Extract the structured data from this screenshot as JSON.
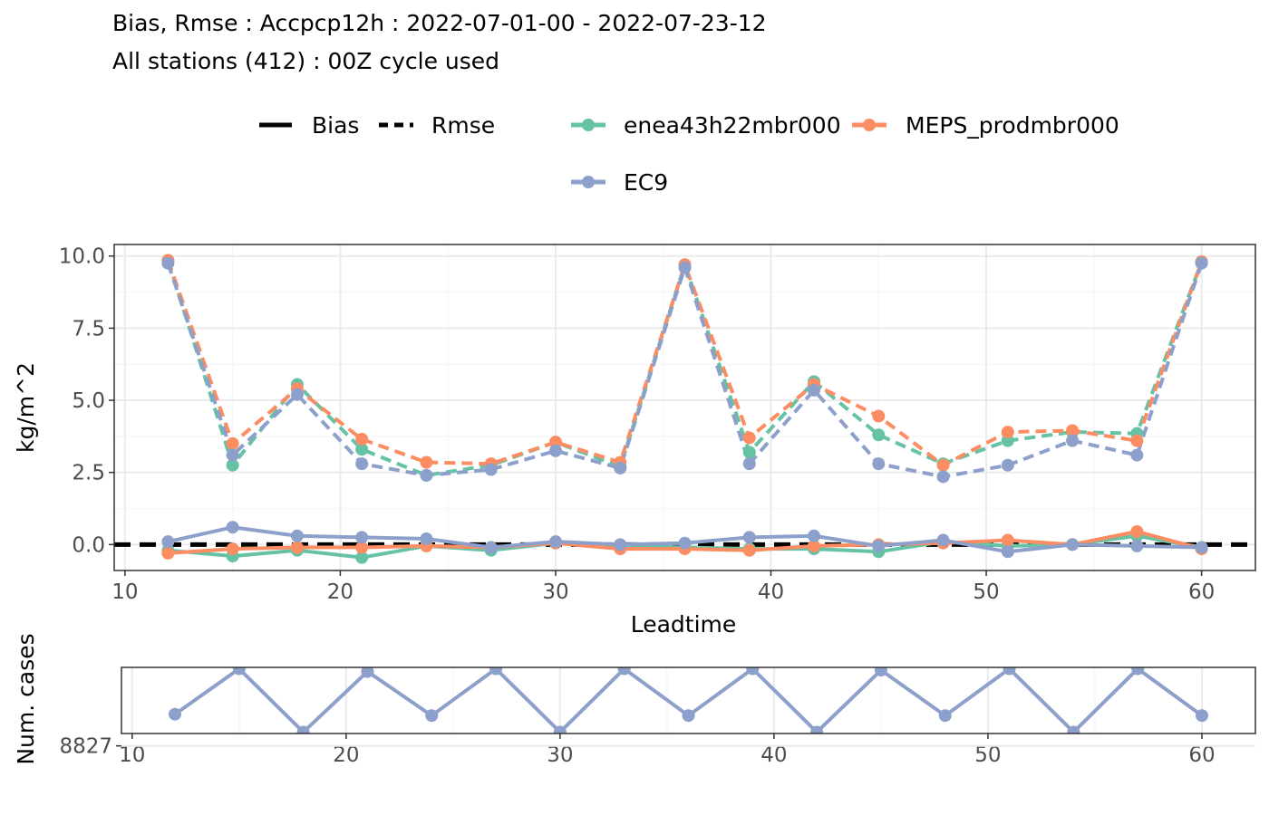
{
  "colors": {
    "enea43h22mbr000": "#66c2a5",
    "MEPS_prodmbr000": "#fc8d62",
    "EC9": "#8da0cb",
    "zero_line": "#000000",
    "grid_major": "#ebebeb",
    "grid_minor": "#f5f5f5",
    "panel_border": "#333333"
  },
  "chart_data": [
    {
      "type": "line",
      "title": "Bias, Rmse : Accpcp12h : 2022-07-01-00 - 2022-07-23-12",
      "subtitle": "All stations (412) : 00Z cycle used",
      "xlabel": "Leadtime",
      "ylabel": "kg/m^2",
      "xlim": [
        9.5,
        62.5
      ],
      "ylim": [
        -0.9,
        10.4
      ],
      "xticks": [
        10,
        20,
        30,
        40,
        50,
        60
      ],
      "yticks": [
        0.0,
        2.5,
        5.0,
        7.5,
        10.0
      ],
      "ytick_labels": [
        "0.0",
        "2.5",
        "5.0",
        "7.5",
        "10.0"
      ],
      "grid": true,
      "legend_position": "top",
      "legend": {
        "linetype": [
          {
            "label": "Bias",
            "style": "solid"
          },
          {
            "label": "Rmse",
            "style": "dashed"
          }
        ],
        "models": [
          "enea43h22mbr000",
          "MEPS_prodmbr000",
          "EC9"
        ]
      },
      "x": [
        12,
        15,
        18,
        21,
        24,
        27,
        30,
        33,
        36,
        39,
        42,
        45,
        48,
        51,
        54,
        57,
        60
      ],
      "series": [
        {
          "name": "enea43h22mbr000",
          "score": "Rmse",
          "values": [
            9.85,
            2.75,
            5.55,
            3.3,
            2.4,
            2.75,
            3.55,
            2.7,
            9.7,
            3.2,
            5.65,
            3.8,
            2.8,
            3.6,
            3.9,
            3.85,
            9.8
          ]
        },
        {
          "name": "MEPS_prodmbr000",
          "score": "Rmse",
          "values": [
            9.85,
            3.5,
            5.4,
            3.65,
            2.85,
            2.8,
            3.55,
            2.85,
            9.7,
            3.7,
            5.55,
            4.45,
            2.75,
            3.9,
            3.95,
            3.6,
            9.8
          ]
        },
        {
          "name": "EC9",
          "score": "Rmse",
          "values": [
            9.75,
            3.1,
            5.2,
            2.8,
            2.4,
            2.6,
            3.25,
            2.65,
            9.6,
            2.8,
            5.35,
            2.8,
            2.35,
            2.75,
            3.6,
            3.1,
            9.75
          ]
        },
        {
          "name": "enea43h22mbr000",
          "score": "Bias",
          "values": [
            -0.2,
            -0.4,
            -0.2,
            -0.45,
            -0.05,
            -0.2,
            0.05,
            -0.05,
            -0.1,
            -0.15,
            -0.15,
            -0.25,
            0.1,
            -0.05,
            0.0,
            0.3,
            -0.1
          ]
        },
        {
          "name": "MEPS_prodmbr000",
          "score": "Bias",
          "values": [
            -0.3,
            -0.15,
            -0.1,
            -0.1,
            -0.05,
            -0.1,
            0.05,
            -0.15,
            -0.15,
            -0.2,
            -0.05,
            0.0,
            0.05,
            0.15,
            0.0,
            0.45,
            -0.15
          ]
        },
        {
          "name": "EC9",
          "score": "Bias",
          "values": [
            0.1,
            0.6,
            0.3,
            0.25,
            0.2,
            -0.1,
            0.1,
            0.0,
            0.05,
            0.25,
            0.3,
            -0.05,
            0.15,
            -0.25,
            0.0,
            -0.05,
            -0.1
          ]
        }
      ]
    },
    {
      "type": "line",
      "xlabel": "",
      "ylabel": "Num. cases",
      "xlim": [
        9.5,
        62.5
      ],
      "ylim": [
        8827.45,
        8829.85
      ],
      "xticks": [
        10,
        20,
        30,
        40,
        50,
        60
      ],
      "yticks": [
        8827
      ],
      "ytick_labels": [
        "8827"
      ],
      "grid": true,
      "x": [
        12,
        15,
        18,
        21,
        24,
        27,
        30,
        33,
        36,
        39,
        42,
        45,
        48,
        51,
        54,
        57,
        60
      ],
      "series": [
        {
          "name": "EC9",
          "values": [
            8828.15,
            8829.8,
            8827.5,
            8829.7,
            8828.1,
            8829.8,
            8827.5,
            8829.8,
            8828.1,
            8829.8,
            8827.5,
            8829.75,
            8828.1,
            8829.8,
            8827.5,
            8829.8,
            8828.1
          ]
        }
      ]
    }
  ]
}
